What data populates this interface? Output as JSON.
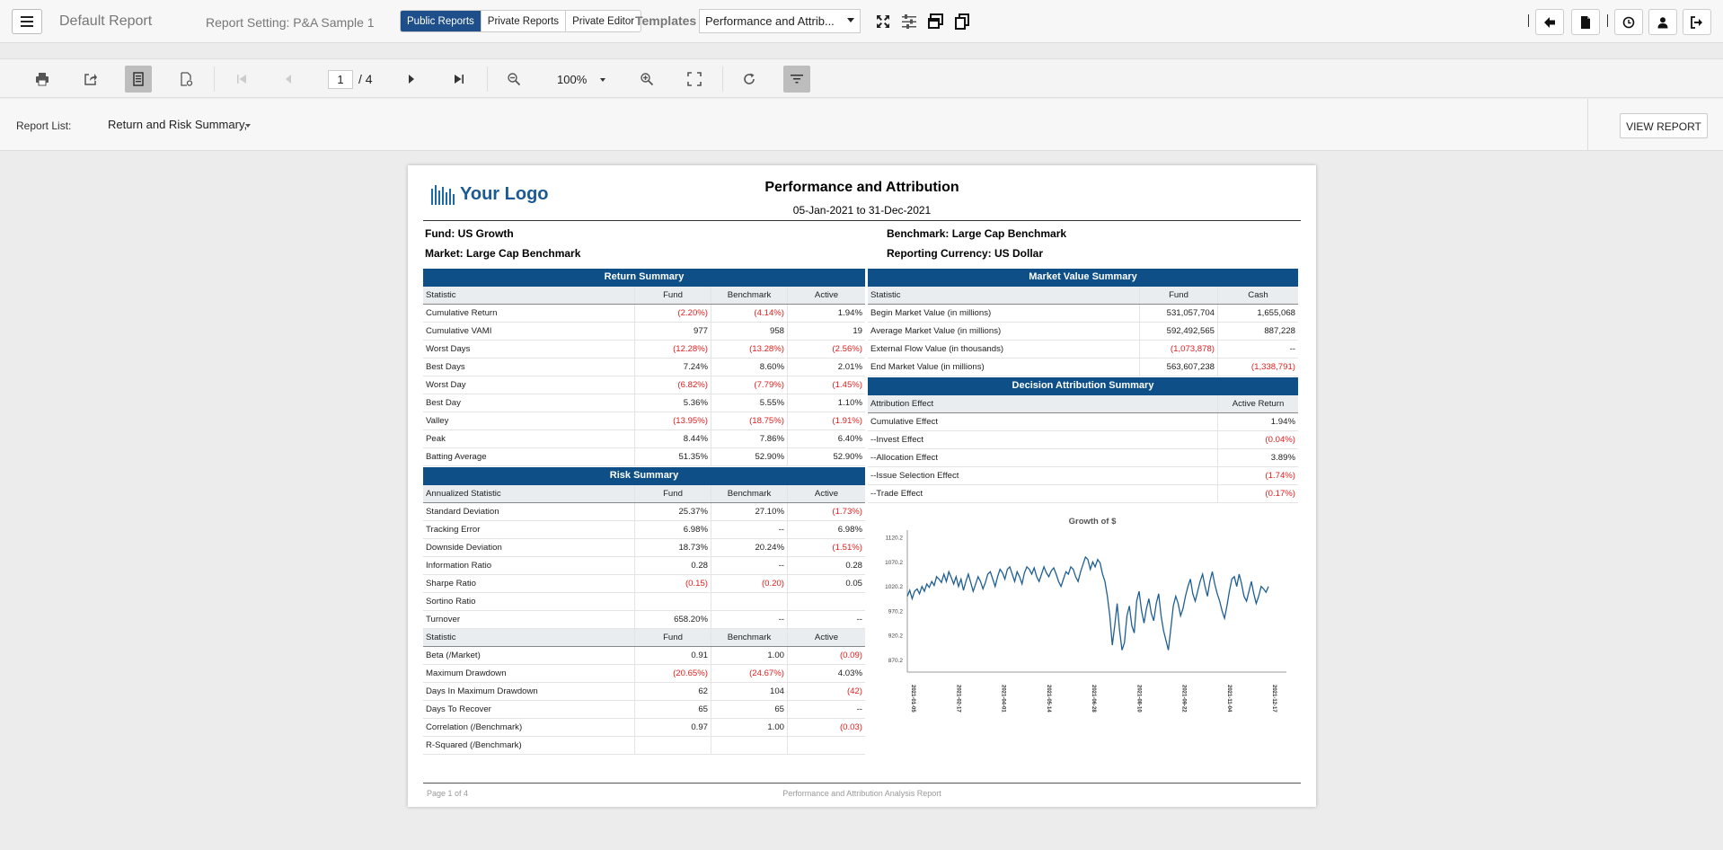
{
  "topbar": {
    "app_title": "Default Report",
    "report_setting": "Report Setting: P&A Sample 1",
    "tabs": [
      "Public Reports",
      "Private Reports",
      "Private Editor"
    ],
    "templates_label": "Templates",
    "template_value": "Performance and Attrib..."
  },
  "viewer": {
    "page_current": "1",
    "page_total": "/ 4",
    "zoom": "100%"
  },
  "report_list": {
    "label": "Report List:",
    "value": "Return and Risk Summary,",
    "view_button": "VIEW REPORT"
  },
  "report": {
    "logo_text": "Your Logo",
    "title": "Performance and Attribution",
    "dates": "05-Jan-2021 to 31-Dec-2021",
    "fund": "Fund: US Growth",
    "market": "Market: Large Cap Benchmark",
    "benchmark": "Benchmark: Large Cap Benchmark",
    "currency": "Reporting Currency: US Dollar",
    "footer_left": "Page 1 of 4",
    "footer_center": "Performance and Attribution Analysis Report"
  },
  "return_summary": {
    "title": "Return Summary",
    "headers": [
      "Statistic",
      "Fund",
      "Benchmark",
      "Active"
    ],
    "rows": [
      [
        "Cumulative Return",
        "(2.20%)",
        "(4.14%)",
        "1.94%"
      ],
      [
        "Cumulative VAMI",
        "977",
        "958",
        "19"
      ],
      [
        "Worst  Days",
        "(12.28%)",
        "(13.28%)",
        "(2.56%)"
      ],
      [
        "Best  Days",
        "7.24%",
        "8.60%",
        "2.01%"
      ],
      [
        "Worst Day",
        "(6.82%)",
        "(7.79%)",
        "(1.45%)"
      ],
      [
        "Best Day",
        "5.36%",
        "5.55%",
        "1.10%"
      ],
      [
        "Valley",
        "(13.95%)",
        "(18.75%)",
        "(1.91%)"
      ],
      [
        "Peak",
        "8.44%",
        "7.86%",
        "6.40%"
      ],
      [
        "Batting Average",
        "51.35%",
        "52.90%",
        "52.90%"
      ]
    ]
  },
  "risk_summary": {
    "title": "Risk Summary",
    "headers": [
      "Annualized Statistic",
      "Fund",
      "Benchmark",
      "Active"
    ],
    "rows": [
      [
        "Standard Deviation",
        "25.37%",
        "27.10%",
        "(1.73%)"
      ],
      [
        "Tracking Error",
        "6.98%",
        "--",
        "6.98%"
      ],
      [
        "Downside Deviation",
        "18.73%",
        "20.24%",
        "(1.51%)"
      ],
      [
        "Information Ratio",
        "0.28",
        "--",
        "0.28"
      ],
      [
        "Sharpe Ratio",
        "(0.15)",
        "(0.20)",
        "0.05"
      ],
      [
        "Sortino Ratio",
        "",
        "",
        ""
      ],
      [
        "Turnover",
        "658.20%",
        "--",
        "--"
      ]
    ],
    "headers2": [
      "Statistic",
      "Fund",
      "Benchmark",
      "Active"
    ],
    "rows2": [
      [
        "Beta (/Market)",
        "0.91",
        "1.00",
        "(0.09)"
      ],
      [
        "Maximum Drawdown",
        "(20.65%)",
        "(24.67%)",
        "4.03%"
      ],
      [
        "Days In Maximum Drawdown",
        "62",
        "104",
        "(42)"
      ],
      [
        "Days To Recover",
        "65",
        "65",
        "--"
      ],
      [
        "Correlation (/Benchmark)",
        "0.97",
        "1.00",
        "(0.03)"
      ],
      [
        "R-Squared (/Benchmark)",
        "",
        "",
        ""
      ]
    ]
  },
  "market_value_summary": {
    "title": "Market Value Summary",
    "headers": [
      "Statistic",
      "Fund",
      "Cash"
    ],
    "rows": [
      [
        "Begin Market Value (in millions)",
        "531,057,704",
        "1,655,068"
      ],
      [
        "Average Market Value (in millions)",
        "592,492,565",
        "887,228"
      ],
      [
        "External Flow Value (in thousands)",
        "(1,073,878)",
        "--"
      ],
      [
        "End Market Value (in millions)",
        "563,607,238",
        "(1,338,791)"
      ]
    ]
  },
  "decision_attribution": {
    "title": "Decision Attribution Summary",
    "headers": [
      "Attribution Effect",
      "Active Return"
    ],
    "rows": [
      [
        "Cumulative Effect",
        "1.94%"
      ],
      [
        "--Invest Effect",
        "(0.04%)"
      ],
      [
        "--Allocation Effect",
        "3.89%"
      ],
      [
        "--Issue Selection Effect",
        "(1.74%)"
      ],
      [
        "--Trade Effect",
        "(0.17%)"
      ]
    ]
  },
  "chart_data": {
    "type": "line",
    "title": "Growth of $",
    "xlabel": "",
    "ylabel": "",
    "yticks": [
      "1120.2",
      "1070.2",
      "1020.2",
      "970.2",
      "920.2",
      "870.2"
    ],
    "ylim": [
      845,
      1135
    ],
    "xticks": [
      "2021-01-05",
      "2021-02-17",
      "2021-04-01",
      "2021-05-14",
      "2021-06-28",
      "2021-08-10",
      "2021-09-22",
      "2021-11-04",
      "2021-12-17"
    ],
    "series": [
      {
        "name": "",
        "color": "#1f5f94",
        "values": [
          1000,
          1012,
          995,
          1010,
          1015,
          1005,
          1020,
          1010,
          1025,
          1018,
          1030,
          1022,
          1040,
          1035,
          1028,
          1045,
          1030,
          1050,
          1038,
          1025,
          1040,
          1020,
          1035,
          1012,
          1030,
          1045,
          1028,
          1010,
          1025,
          1040,
          1030,
          1015,
          1028,
          1045,
          1050,
          1035,
          1020,
          1040,
          1055,
          1048,
          1035,
          1055,
          1060,
          1045,
          1030,
          1050,
          1040,
          1025,
          1048,
          1060,
          1055,
          1045,
          1058,
          1040,
          1030,
          1045,
          1060,
          1048,
          1040,
          1052,
          1058,
          1045,
          1030,
          1020,
          1035,
          1050,
          1045,
          1060,
          1055,
          1040,
          1030,
          1050,
          1065,
          1080,
          1075,
          1055,
          1070,
          1060,
          1075,
          1068,
          1045,
          1030,
          1000,
          960,
          900,
          940,
          985,
          930,
          890,
          905,
          960,
          980,
          940,
          925,
          990,
          1010,
          970,
          945,
          975,
          995,
          965,
          950,
          985,
          1005,
          960,
          930,
          910,
          890,
          935,
          980,
          1000,
          985,
          960,
          975,
          1000,
          1020,
          1035,
          1005,
          990,
          1010,
          1030,
          1045,
          1020,
          1000,
          1030,
          1050,
          1025,
          1005,
          990,
          970,
          955,
          980,
          1010,
          1035,
          1040,
          1020,
          1045,
          1025,
          1000,
          990,
          1010,
          1030,
          1005,
          985,
          1000,
          1020,
          1015,
          1008,
          1020
        ]
      }
    ]
  },
  "colors": {
    "brand_blue": "#0d4f86",
    "active_tab": "#1e4f8a",
    "negative": "#e02020",
    "line": "#1f5f94"
  }
}
